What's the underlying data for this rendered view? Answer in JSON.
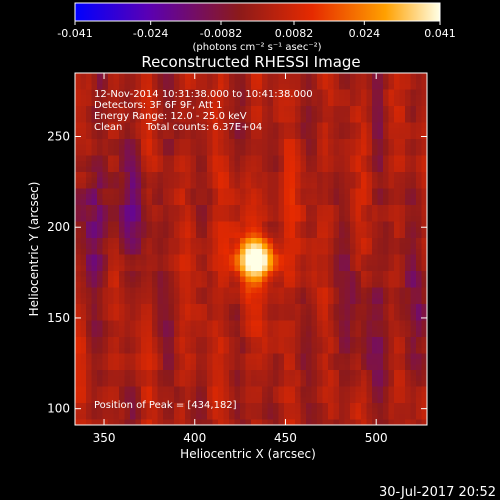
{
  "colorbar": {
    "tick_labels": [
      "-0.041",
      "-0.024",
      "-0.0082",
      "0.0082",
      "0.024",
      "0.041"
    ],
    "tick_values": [
      -0.041,
      -0.024,
      -0.0082,
      0.0082,
      0.024,
      0.041
    ],
    "range": [
      -0.041,
      0.041
    ],
    "units_label": "(photons cm⁻² s⁻¹ asec⁻²)",
    "colormap": [
      "#0000ff",
      "#5a00b4",
      "#8c1a1a",
      "#e62a00",
      "#ffa000",
      "#ffffe6"
    ]
  },
  "chart_data": {
    "type": "heatmap",
    "title": "Reconstructed RHESSI Image",
    "xlabel": "Heliocentric X (arcsec)",
    "ylabel": "Heliocentric Y (arcsec)",
    "xlim": [
      334,
      528
    ],
    "ylim": [
      91,
      285
    ],
    "x_ticks": [
      "350",
      "400",
      "450",
      "500"
    ],
    "y_ticks": [
      "100",
      "150",
      "200",
      "250"
    ],
    "peak": {
      "x": 434,
      "y": 182
    },
    "annotations": {
      "time": "12-Nov-2014 10:31:38.000 to 10:41:38.000",
      "detectors": "Detectors: 3F 6F 9F, Att 1",
      "energy": "Energy Range: 12.0 - 25.0 keV",
      "clean": "Clean",
      "total_counts": "Total counts: 6.37E+04",
      "peak_label": "Position of Peak = [434,182]"
    }
  },
  "footer": {
    "timestamp": "30-Jul-2017 20:52"
  }
}
